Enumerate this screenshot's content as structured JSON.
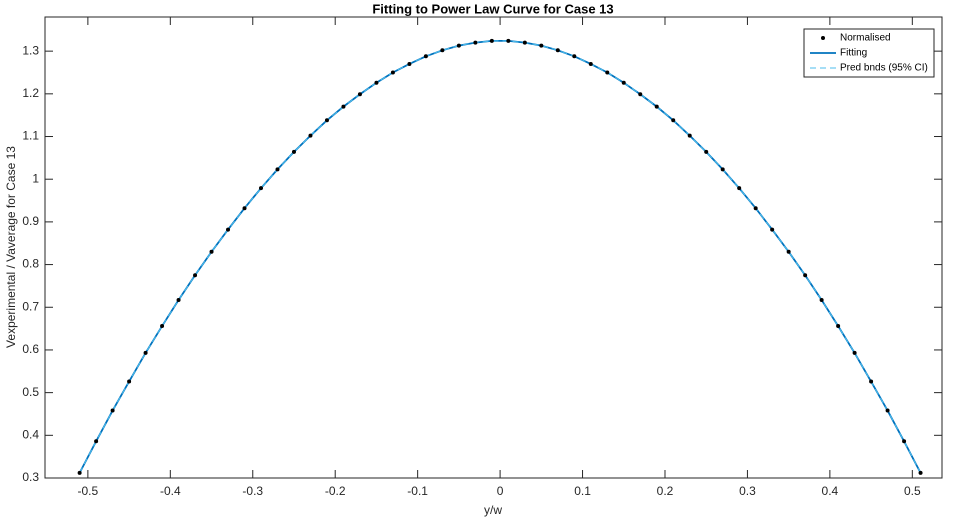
{
  "chart_data": {
    "type": "line",
    "title": "Fitting to Power Law Curve for Case 13",
    "x_label": "y/w",
    "y_label": "Vexperimental / Vaverage for Case 13",
    "x": [
      -0.51,
      -0.49,
      -0.47,
      -0.45,
      -0.43,
      -0.41,
      -0.39,
      -0.37,
      -0.35,
      -0.33,
      -0.31,
      -0.29,
      -0.27,
      -0.25,
      -0.23,
      -0.21,
      -0.19,
      -0.17,
      -0.15,
      -0.13,
      -0.11,
      -0.09,
      -0.07,
      -0.05,
      -0.03,
      -0.01,
      0.01,
      0.03,
      0.05,
      0.07,
      0.09,
      0.11,
      0.13,
      0.15,
      0.17,
      0.19,
      0.21,
      0.23,
      0.25,
      0.27,
      0.29,
      0.31,
      0.33,
      0.35,
      0.37,
      0.39,
      0.41,
      0.43,
      0.45,
      0.47,
      0.49,
      0.51
    ],
    "series": [
      {
        "name": "Normalised",
        "color": "#000000",
        "style": "dots",
        "values": [
          0.312,
          0.386,
          0.458,
          0.526,
          0.593,
          0.656,
          0.717,
          0.775,
          0.83,
          0.882,
          0.932,
          0.979,
          1.023,
          1.064,
          1.102,
          1.138,
          1.17,
          1.199,
          1.226,
          1.25,
          1.27,
          1.288,
          1.302,
          1.313,
          1.32,
          1.324,
          1.324,
          1.32,
          1.313,
          1.302,
          1.288,
          1.27,
          1.25,
          1.226,
          1.199,
          1.17,
          1.138,
          1.102,
          1.064,
          1.023,
          0.979,
          0.932,
          0.882,
          0.83,
          0.775,
          0.717,
          0.656,
          0.593,
          0.526,
          0.458,
          0.386,
          0.312
        ]
      },
      {
        "name": "Fitting",
        "color": "#0072bd",
        "style": "solid",
        "values": [
          0.312,
          0.386,
          0.458,
          0.526,
          0.593,
          0.656,
          0.717,
          0.775,
          0.83,
          0.882,
          0.932,
          0.979,
          1.023,
          1.064,
          1.102,
          1.138,
          1.17,
          1.199,
          1.226,
          1.25,
          1.27,
          1.288,
          1.302,
          1.313,
          1.32,
          1.324,
          1.324,
          1.32,
          1.313,
          1.302,
          1.288,
          1.27,
          1.25,
          1.226,
          1.199,
          1.17,
          1.138,
          1.102,
          1.064,
          1.023,
          0.979,
          0.932,
          0.882,
          0.83,
          0.775,
          0.717,
          0.656,
          0.593,
          0.526,
          0.458,
          0.386,
          0.312
        ]
      },
      {
        "name": "Pred bnds (95% CI)",
        "color": "#4dbeee",
        "style": "dashed",
        "values": [
          0.312,
          0.386,
          0.458,
          0.526,
          0.593,
          0.656,
          0.717,
          0.775,
          0.83,
          0.882,
          0.932,
          0.979,
          1.023,
          1.064,
          1.102,
          1.138,
          1.17,
          1.199,
          1.226,
          1.25,
          1.27,
          1.288,
          1.302,
          1.313,
          1.32,
          1.324,
          1.324,
          1.32,
          1.313,
          1.302,
          1.288,
          1.27,
          1.25,
          1.226,
          1.199,
          1.17,
          1.138,
          1.102,
          1.064,
          1.023,
          0.979,
          0.932,
          0.882,
          0.83,
          0.775,
          0.717,
          0.656,
          0.593,
          0.526,
          0.458,
          0.386,
          0.312
        ]
      }
    ],
    "xlim": [
      -0.552,
      0.536
    ],
    "ylim": [
      0.3,
      1.38
    ],
    "xticks": [
      -0.5,
      -0.4,
      -0.3,
      -0.2,
      -0.1,
      0,
      0.1,
      0.2,
      0.3,
      0.4,
      0.5
    ],
    "yticks": [
      0.3,
      0.4,
      0.5,
      0.6,
      0.7,
      0.8,
      0.9,
      1,
      1.1,
      1.2,
      1.3
    ],
    "grid": false,
    "legend": "top-right"
  }
}
